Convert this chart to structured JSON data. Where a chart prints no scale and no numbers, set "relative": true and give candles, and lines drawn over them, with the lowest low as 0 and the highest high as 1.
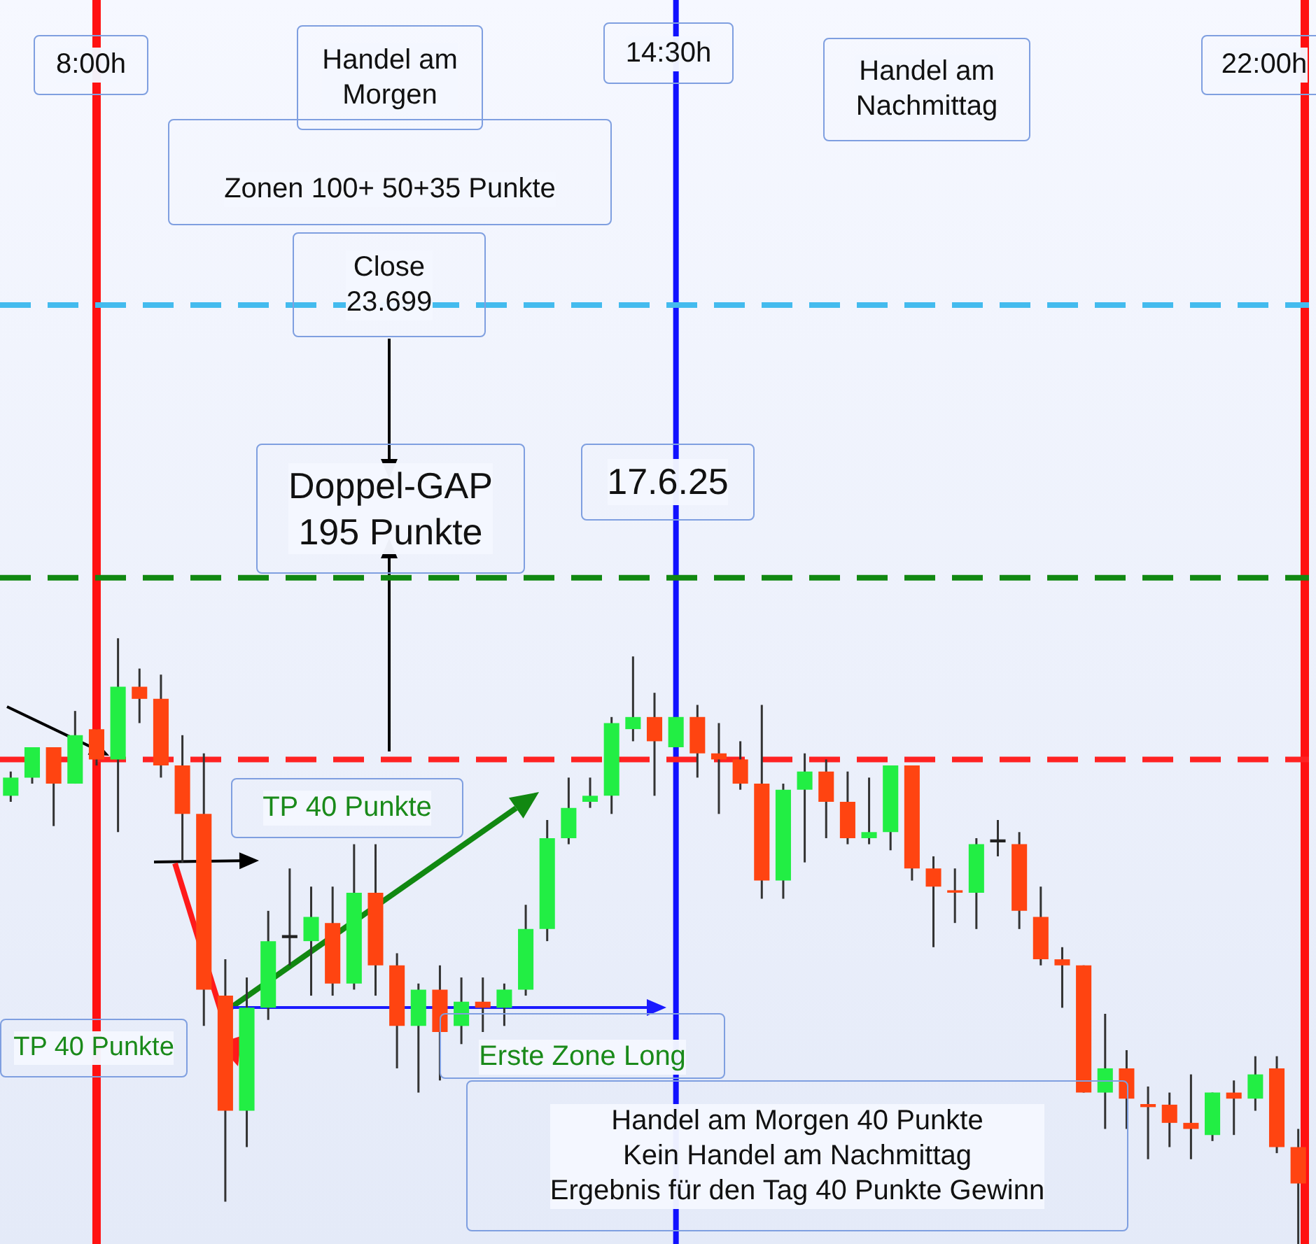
{
  "chart_data": {
    "type": "candlestick",
    "relative": true,
    "categories": [
      null,
      null,
      null,
      null,
      null,
      null,
      null,
      null,
      null,
      null,
      null,
      null,
      null,
      null,
      null,
      null,
      null,
      null,
      null,
      null,
      null,
      null,
      null,
      null,
      null,
      null,
      null,
      null,
      null,
      null,
      null,
      null,
      null,
      null,
      null,
      null,
      null,
      null,
      null,
      null,
      null,
      null,
      null,
      null,
      null,
      null,
      null,
      null,
      null,
      null,
      null,
      null,
      null,
      null,
      null,
      null,
      null,
      null,
      null,
      null,
      null
    ],
    "ohlc": [
      [
        0.74,
        0.78,
        0.73,
        0.77
      ],
      [
        0.77,
        0.82,
        0.76,
        0.82
      ],
      [
        0.82,
        0.82,
        0.69,
        0.76
      ],
      [
        0.76,
        0.88,
        0.76,
        0.84
      ],
      [
        0.85,
        0.85,
        0.79,
        0.8
      ],
      [
        0.8,
        1,
        0.68,
        0.92
      ],
      [
        0.92,
        0.95,
        0.86,
        0.9
      ],
      [
        0.9,
        0.94,
        0.77,
        0.79
      ],
      [
        0.79,
        0.84,
        0.63,
        0.71
      ],
      [
        0.71,
        0.81,
        0.36,
        0.42
      ],
      [
        0.41,
        0.47,
        0.07,
        0.22
      ],
      [
        0.22,
        0.44,
        0.16,
        0.39
      ],
      [
        0.39,
        0.55,
        0.37,
        0.5
      ],
      [
        0.505,
        0.62,
        0.46,
        0.51
      ],
      [
        0.5,
        0.59,
        0.41,
        0.54
      ],
      [
        0.53,
        0.59,
        0.41,
        0.43
      ],
      [
        0.43,
        0.66,
        0.42,
        0.58
      ],
      [
        0.58,
        0.66,
        0.41,
        0.46
      ],
      [
        0.46,
        0.48,
        0.29,
        0.36
      ],
      [
        0.36,
        0.43,
        0.25,
        0.42
      ],
      [
        0.42,
        0.46,
        0.27,
        0.35
      ],
      [
        0.36,
        0.44,
        0.33,
        0.4
      ],
      [
        0.4,
        0.44,
        0.35,
        0.39
      ],
      [
        0.39,
        0.43,
        0.36,
        0.42
      ],
      [
        0.42,
        0.56,
        0.41,
        0.52
      ],
      [
        0.52,
        0.7,
        0.5,
        0.67
      ],
      [
        0.67,
        0.77,
        0.66,
        0.72
      ],
      [
        0.73,
        0.77,
        0.72,
        0.74
      ],
      [
        0.74,
        0.87,
        0.71,
        0.86
      ],
      [
        0.85,
        0.97,
        0.83,
        0.87
      ],
      [
        0.87,
        0.91,
        0.74,
        0.83
      ],
      [
        0.82,
        0.87,
        0.82,
        0.87
      ],
      [
        0.87,
        0.89,
        0.77,
        0.81
      ],
      [
        0.81,
        0.86,
        0.71,
        0.8
      ],
      [
        0.8,
        0.83,
        0.75,
        0.76
      ],
      [
        0.76,
        0.89,
        0.57,
        0.6
      ],
      [
        0.6,
        0.76,
        0.57,
        0.75
      ],
      [
        0.75,
        0.81,
        0.63,
        0.78
      ],
      [
        0.78,
        0.8,
        0.67,
        0.73
      ],
      [
        0.73,
        0.78,
        0.66,
        0.67
      ],
      [
        0.67,
        0.77,
        0.66,
        0.68
      ],
      [
        0.68,
        0.79,
        0.65,
        0.79
      ],
      [
        0.79,
        0.79,
        0.6,
        0.62
      ],
      [
        0.62,
        0.64,
        0.49,
        0.59
      ],
      [
        0.584,
        0.62,
        0.53,
        0.58
      ],
      [
        0.58,
        0.67,
        0.52,
        0.66
      ],
      [
        0.663,
        0.7,
        0.64,
        0.668
      ],
      [
        0.66,
        0.68,
        0.52,
        0.55
      ],
      [
        0.54,
        0.59,
        0.46,
        0.47
      ],
      [
        0.47,
        0.49,
        0.39,
        0.46
      ],
      [
        0.46,
        0.46,
        0.25,
        0.25
      ],
      [
        0.25,
        0.38,
        0.19,
        0.29
      ],
      [
        0.29,
        0.32,
        0.19,
        0.24
      ],
      [
        0.231,
        0.26,
        0.14,
        0.226
      ],
      [
        0.23,
        0.25,
        0.16,
        0.2
      ],
      [
        0.2,
        0.28,
        0.14,
        0.19
      ],
      [
        0.18,
        0.25,
        0.17,
        0.25
      ],
      [
        0.25,
        0.27,
        0.18,
        0.24
      ],
      [
        0.24,
        0.31,
        0.22,
        0.28
      ],
      [
        0.29,
        0.31,
        0.15,
        0.16
      ],
      [
        0.16,
        0.19,
        0,
        0.1
      ]
    ],
    "colors": [
      "#22ee44",
      "#22ee44",
      "#ff4411",
      "#22ee44",
      "#ff4411",
      "#22ee44",
      "#ff4411",
      "#ff4411",
      "#ff4411",
      "#ff4411",
      "#ff4411",
      "#22ee44",
      "#22ee44",
      "#222222",
      "#22ee44",
      "#ff4411",
      "#22ee44",
      "#ff4411",
      "#ff4411",
      "#22ee44",
      "#ff4411",
      "#22ee44",
      "#ff4411",
      "#22ee44",
      "#22ee44",
      "#22ee44",
      "#22ee44",
      "#22ee44",
      "#22ee44",
      "#22ee44",
      "#ff4411",
      "#22ee44",
      "#ff4411",
      "#ff4411",
      "#ff4411",
      "#ff4411",
      "#22ee44",
      "#22ee44",
      "#ff4411",
      "#ff4411",
      "#22ee44",
      "#22ee44",
      "#ff4411",
      "#ff4411",
      "#ff4411",
      "#22ee44",
      "#222222",
      "#ff4411",
      "#ff4411",
      "#ff4411",
      "#ff4411",
      "#22ee44",
      "#ff4411",
      "#ff4411",
      "#ff4411",
      "#ff4411",
      "#22ee44",
      "#ff4411",
      "#22ee44",
      "#ff4411",
      "#ff4411"
    ],
    "ref_lines": [
      {
        "axis": "y",
        "value": 1.55,
        "color": "#44bbee",
        "line_style": "dashed"
      },
      {
        "axis": "y",
        "value": 1.1,
        "color": "#118811",
        "line_style": "dashed"
      },
      {
        "axis": "y",
        "value": 0.8,
        "color": "#ff2222",
        "line_style": "dashed"
      }
    ],
    "annotations": [
      "8:00h",
      "Handel am\nMorgen",
      "14:30h",
      "Handel am\nNachmittag",
      "22:00h",
      "Zonen 100+ 50+35 Punkte",
      "Close\n23.699",
      "Doppel-GAP\n195 Punkte",
      "17.6.25",
      "TP 40 Punkte",
      "TP 40 Punkte",
      "Erste Zone Long",
      "Handel am Morgen 40 Punkte\nKein Handel am Nachmittag\nErgebnis für den Tag 40 Punkte Gewinn"
    ]
  }
}
